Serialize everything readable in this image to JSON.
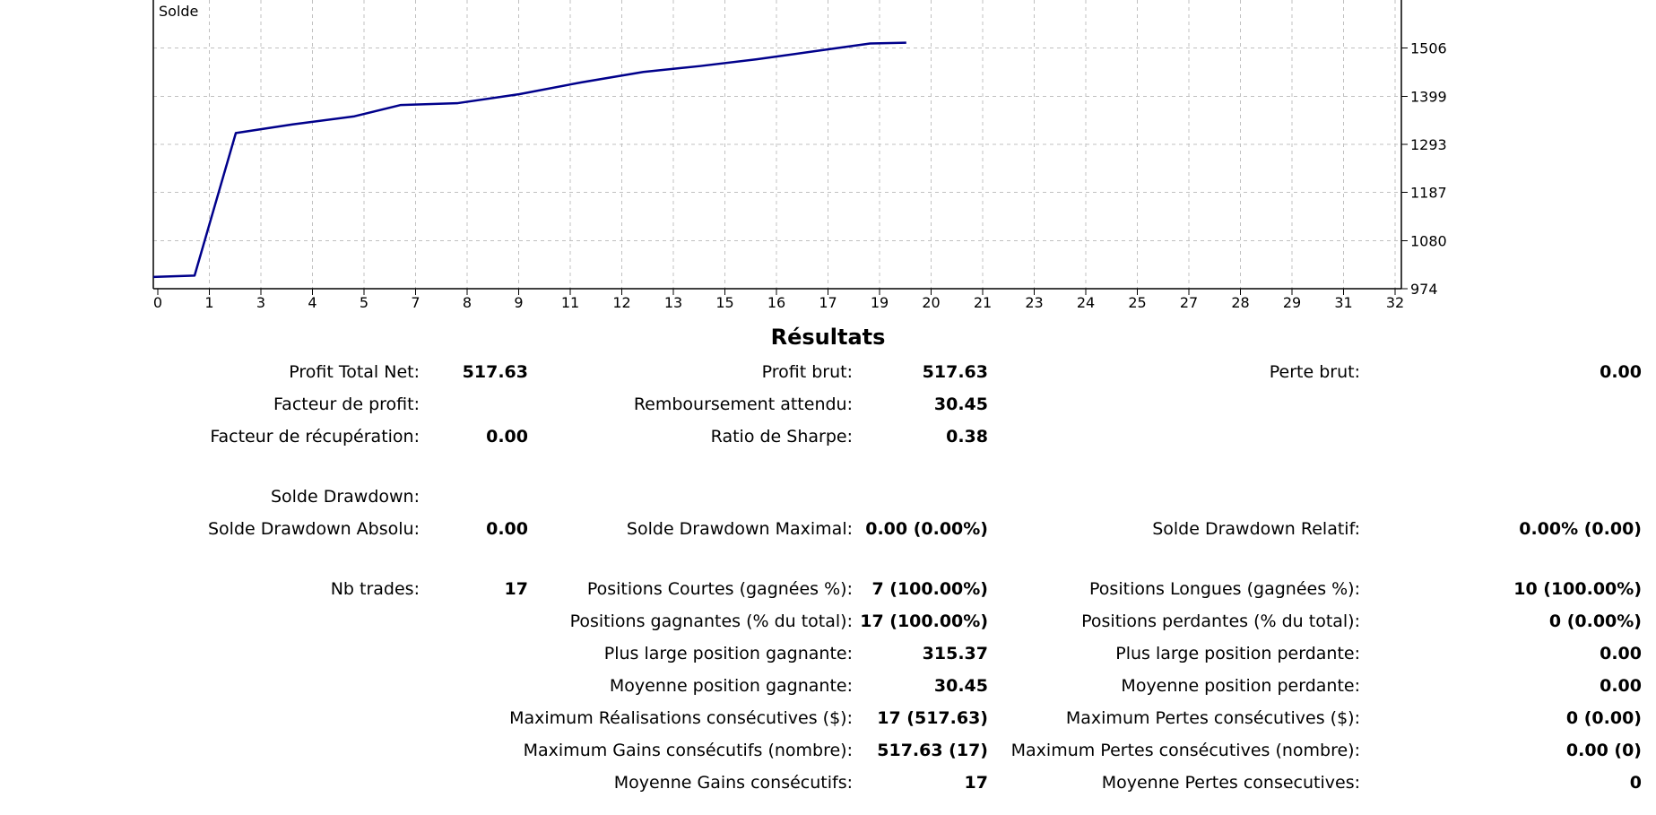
{
  "chart_data": {
    "type": "line",
    "title": "",
    "series_label": "Solde",
    "xlabel": "",
    "ylabel": "",
    "x_tick_labels": [
      "0",
      "1",
      "3",
      "4",
      "5",
      "7",
      "8",
      "9",
      "11",
      "12",
      "13",
      "15",
      "16",
      "17",
      "19",
      "20",
      "21",
      "23",
      "24",
      "25",
      "27",
      "28",
      "29",
      "31",
      "32"
    ],
    "y_tick_labels": [
      "974",
      "1080",
      "1187",
      "1293",
      "1399",
      "1506"
    ],
    "ylim": [
      974,
      1612
    ],
    "xlim": [
      0,
      24.2
    ],
    "series": [
      {
        "x": [
          0,
          0.8,
          1.6,
          2.7,
          3.9,
          4.8,
          5.9,
          7.1,
          8.3,
          9.5,
          10.6,
          11.7,
          12.9,
          13.9,
          14.6
        ],
        "y": [
          1000,
          1003,
          1318,
          1337,
          1355,
          1380,
          1384,
          1404,
          1430,
          1453,
          1466,
          1481,
          1500,
          1516,
          1517.63
        ]
      }
    ],
    "grid": true,
    "colors": {
      "line": "#00008b",
      "grid": "#c0c0c0",
      "axis": "#000000"
    }
  },
  "results": {
    "title": "Résultats",
    "rows": [
      {
        "top": 403,
        "cells": [
          {
            "col": 1,
            "label": "Profit Total Net:",
            "value": "517.63"
          },
          {
            "col": 2,
            "label": "Profit brut:",
            "value": "517.63"
          },
          {
            "col": 3,
            "label": "Perte brut:",
            "value": "0.00"
          }
        ]
      },
      {
        "top": 439,
        "cells": [
          {
            "col": 1,
            "label": "Facteur de profit:",
            "value": ""
          },
          {
            "col": 2,
            "label": "Remboursement attendu:",
            "value": "30.45"
          }
        ]
      },
      {
        "top": 475,
        "cells": [
          {
            "col": 1,
            "label": "Facteur de récupération:",
            "value": "0.00"
          },
          {
            "col": 2,
            "label": "Ratio de Sharpe:",
            "value": "0.38"
          }
        ]
      },
      {
        "top": 542,
        "cells": [
          {
            "col": 1,
            "label": "Solde Drawdown:",
            "value": ""
          }
        ]
      },
      {
        "top": 578,
        "cells": [
          {
            "col": 1,
            "label": "Solde Drawdown Absolu:",
            "value": "0.00"
          },
          {
            "col": 2,
            "label": "Solde Drawdown Maximal:",
            "value": "0.00 (0.00%)"
          },
          {
            "col": 3,
            "label": "Solde Drawdown Relatif:",
            "value": "0.00% (0.00)"
          }
        ]
      },
      {
        "top": 645,
        "cells": [
          {
            "col": 1,
            "label": "Nb trades:",
            "value": "17"
          },
          {
            "col": 2,
            "label": "Positions Courtes (gagnées %):",
            "value": "7 (100.00%)"
          },
          {
            "col": 3,
            "label": "Positions Longues (gagnées %):",
            "value": "10 (100.00%)"
          }
        ]
      },
      {
        "top": 681,
        "cells": [
          {
            "col": 2,
            "label": "Positions gagnantes (% du total):",
            "value": "17 (100.00%)"
          },
          {
            "col": 3,
            "label": "Positions perdantes (% du total):",
            "value": "0 (0.00%)"
          }
        ]
      },
      {
        "top": 717,
        "cells": [
          {
            "col": 2,
            "label": "Plus large position gagnante:",
            "value": "315.37"
          },
          {
            "col": 3,
            "label": "Plus large position perdante:",
            "value": "0.00"
          }
        ]
      },
      {
        "top": 753,
        "cells": [
          {
            "col": 2,
            "label": "Moyenne position gagnante:",
            "value": "30.45"
          },
          {
            "col": 3,
            "label": "Moyenne position perdante:",
            "value": "0.00"
          }
        ]
      },
      {
        "top": 789,
        "cells": [
          {
            "col": 2,
            "label": "Maximum Réalisations consécutives ($):",
            "value": "17 (517.63)"
          },
          {
            "col": 3,
            "label": "Maximum Pertes consécutives ($):",
            "value": "0 (0.00)"
          }
        ]
      },
      {
        "top": 825,
        "cells": [
          {
            "col": 2,
            "label": "Maximum Gains consécutifs (nombre):",
            "value": "517.63 (17)"
          },
          {
            "col": 3,
            "label": "Maximum Pertes consécutives (nombre):",
            "value": "0.00 (0)"
          }
        ]
      },
      {
        "top": 861,
        "cells": [
          {
            "col": 2,
            "label": "Moyenne Gains consécutifs:",
            "value": "17"
          },
          {
            "col": 3,
            "label": "Moyenne Pertes consecutives:",
            "value": "0"
          }
        ]
      }
    ]
  }
}
